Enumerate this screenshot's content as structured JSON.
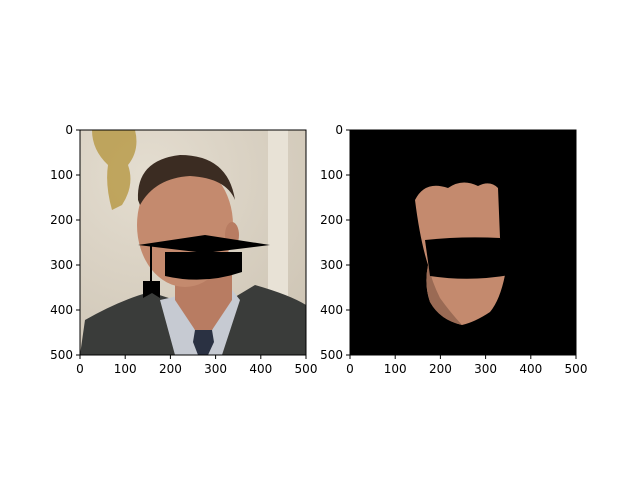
{
  "chart_data": [
    {
      "type": "image",
      "panel": "left",
      "content": "photo of a man in a suit with a black graduation-cap overlay drawn across the face",
      "xlim": [
        0,
        500
      ],
      "ylim": [
        500,
        0
      ],
      "xticks": [
        0,
        100,
        200,
        300,
        400,
        500
      ],
      "yticks": [
        0,
        100,
        200,
        300,
        400,
        500
      ],
      "xtick_labels": [
        "0",
        "100",
        "200",
        "300",
        "400",
        "500"
      ],
      "ytick_labels": [
        "0",
        "100",
        "200",
        "300",
        "400",
        "500"
      ],
      "colors": {
        "wall": "#d8cfc0",
        "suit": "#3a3c3a",
        "skin": "#c48a6e",
        "hair": "#3b2c22",
        "overlay": "#000000",
        "shirt": "#c6cad2",
        "tie": "#2a3142"
      }
    },
    {
      "type": "image",
      "panel": "right",
      "content": "segmented face region on black background with a black band masking the mouth area",
      "xlim": [
        0,
        500
      ],
      "ylim": [
        500,
        0
      ],
      "xticks": [
        0,
        100,
        200,
        300,
        400,
        500
      ],
      "yticks": [
        0,
        100,
        200,
        300,
        400,
        500
      ],
      "xtick_labels": [
        "0",
        "100",
        "200",
        "300",
        "400",
        "500"
      ],
      "ytick_labels": [
        "0",
        "100",
        "200",
        "300",
        "400",
        "500"
      ],
      "colors": {
        "background": "#000000",
        "skin": "#c48a6e"
      }
    }
  ]
}
